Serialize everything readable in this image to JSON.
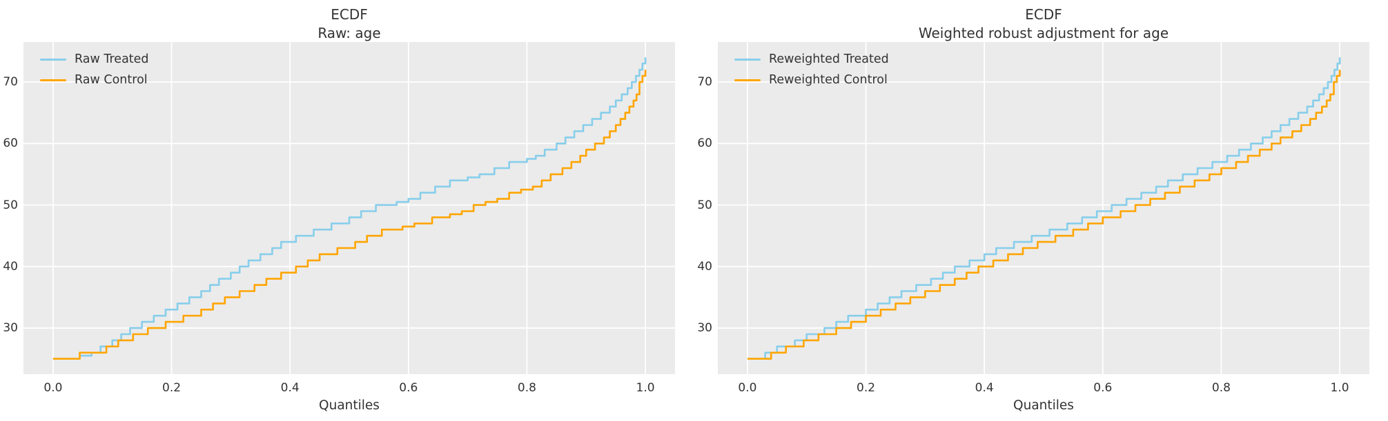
{
  "style": {
    "figure_bg": "#ffffff",
    "axes_bg": "#ebebeb",
    "grid_color": "#ffffff",
    "text_color": "#333333",
    "treated_color": "#87CEEB",
    "control_color": "#FFA500",
    "line_width": 2.6,
    "grid_width": 1.8
  },
  "chart_data": [
    {
      "type": "line",
      "title": "ECDF",
      "subtitle": "Raw: age",
      "xlabel": "Quantiles",
      "ylabel": "",
      "xlim": [
        -0.05,
        1.05
      ],
      "ylim": [
        22.5,
        76.5
      ],
      "xticks": [
        0.0,
        0.2,
        0.4,
        0.6,
        0.8,
        1.0
      ],
      "xtick_labels": [
        "0.0",
        "0.2",
        "0.4",
        "0.6",
        "0.8",
        "1.0"
      ],
      "yticks": [
        30,
        40,
        50,
        60,
        70
      ],
      "ytick_labels": [
        "30",
        "40",
        "50",
        "60",
        "70"
      ],
      "grid": true,
      "legend_position": "upper left",
      "step_mode": "post",
      "series": [
        {
          "name": "Raw Treated",
          "color": "#87CEEB",
          "points": [
            [
              0,
              25
            ],
            [
              0.045,
              25.5
            ],
            [
              0.065,
              26
            ],
            [
              0.08,
              27
            ],
            [
              0.1,
              28
            ],
            [
              0.115,
              29
            ],
            [
              0.13,
              30
            ],
            [
              0.15,
              31
            ],
            [
              0.17,
              32
            ],
            [
              0.19,
              33
            ],
            [
              0.21,
              34
            ],
            [
              0.23,
              35
            ],
            [
              0.25,
              36
            ],
            [
              0.265,
              37
            ],
            [
              0.28,
              38
            ],
            [
              0.3,
              39
            ],
            [
              0.315,
              40
            ],
            [
              0.33,
              41
            ],
            [
              0.35,
              42
            ],
            [
              0.37,
              43
            ],
            [
              0.385,
              44
            ],
            [
              0.41,
              45
            ],
            [
              0.44,
              46
            ],
            [
              0.47,
              47
            ],
            [
              0.5,
              48
            ],
            [
              0.52,
              49
            ],
            [
              0.545,
              50
            ],
            [
              0.58,
              50.5
            ],
            [
              0.6,
              51
            ],
            [
              0.62,
              52
            ],
            [
              0.645,
              53
            ],
            [
              0.67,
              54
            ],
            [
              0.7,
              54.5
            ],
            [
              0.72,
              55
            ],
            [
              0.745,
              56
            ],
            [
              0.77,
              57
            ],
            [
              0.8,
              57.5
            ],
            [
              0.815,
              58
            ],
            [
              0.83,
              59
            ],
            [
              0.85,
              60
            ],
            [
              0.865,
              61
            ],
            [
              0.88,
              62
            ],
            [
              0.895,
              63
            ],
            [
              0.91,
              64
            ],
            [
              0.925,
              65
            ],
            [
              0.94,
              66
            ],
            [
              0.95,
              67
            ],
            [
              0.96,
              68
            ],
            [
              0.97,
              69
            ],
            [
              0.977,
              70
            ],
            [
              0.984,
              71
            ],
            [
              0.99,
              72
            ],
            [
              0.995,
              73
            ],
            [
              1,
              74
            ]
          ]
        },
        {
          "name": "Raw Control",
          "color": "#FFA500",
          "points": [
            [
              0,
              25
            ],
            [
              0.045,
              26
            ],
            [
              0.09,
              27
            ],
            [
              0.11,
              28
            ],
            [
              0.135,
              29
            ],
            [
              0.16,
              30
            ],
            [
              0.19,
              31
            ],
            [
              0.22,
              32
            ],
            [
              0.25,
              33
            ],
            [
              0.27,
              34
            ],
            [
              0.29,
              35
            ],
            [
              0.315,
              36
            ],
            [
              0.34,
              37
            ],
            [
              0.36,
              38
            ],
            [
              0.385,
              39
            ],
            [
              0.41,
              40
            ],
            [
              0.43,
              41
            ],
            [
              0.45,
              42
            ],
            [
              0.48,
              43
            ],
            [
              0.51,
              44
            ],
            [
              0.53,
              45
            ],
            [
              0.555,
              46
            ],
            [
              0.59,
              46.5
            ],
            [
              0.61,
              47
            ],
            [
              0.64,
              48
            ],
            [
              0.67,
              48.5
            ],
            [
              0.69,
              49
            ],
            [
              0.71,
              50
            ],
            [
              0.73,
              50.5
            ],
            [
              0.75,
              51
            ],
            [
              0.77,
              52
            ],
            [
              0.79,
              52.5
            ],
            [
              0.81,
              53
            ],
            [
              0.825,
              54
            ],
            [
              0.84,
              55
            ],
            [
              0.86,
              56
            ],
            [
              0.875,
              57
            ],
            [
              0.89,
              58
            ],
            [
              0.9,
              59
            ],
            [
              0.915,
              60
            ],
            [
              0.93,
              61
            ],
            [
              0.94,
              62
            ],
            [
              0.95,
              63
            ],
            [
              0.958,
              64
            ],
            [
              0.966,
              65
            ],
            [
              0.973,
              66
            ],
            [
              0.98,
              67
            ],
            [
              0.985,
              68
            ],
            [
              0.99,
              70
            ],
            [
              0.995,
              71
            ],
            [
              1,
              72
            ]
          ]
        }
      ]
    },
    {
      "type": "line",
      "title": "ECDF",
      "subtitle": "Weighted robust adjustment for age",
      "xlabel": "Quantiles",
      "ylabel": "",
      "xlim": [
        -0.05,
        1.05
      ],
      "ylim": [
        22.5,
        76.5
      ],
      "xticks": [
        0.0,
        0.2,
        0.4,
        0.6,
        0.8,
        1.0
      ],
      "xtick_labels": [
        "0.0",
        "0.2",
        "0.4",
        "0.6",
        "0.8",
        "1.0"
      ],
      "yticks": [
        30,
        40,
        50,
        60,
        70
      ],
      "ytick_labels": [
        "30",
        "40",
        "50",
        "60",
        "70"
      ],
      "grid": true,
      "legend_position": "upper left",
      "step_mode": "post",
      "series": [
        {
          "name": "Reweighted Treated",
          "color": "#87CEEB",
          "points": [
            [
              0,
              25
            ],
            [
              0.03,
              26
            ],
            [
              0.05,
              27
            ],
            [
              0.08,
              28
            ],
            [
              0.1,
              29
            ],
            [
              0.13,
              30
            ],
            [
              0.15,
              31
            ],
            [
              0.17,
              32
            ],
            [
              0.2,
              33
            ],
            [
              0.22,
              34
            ],
            [
              0.24,
              35
            ],
            [
              0.26,
              36
            ],
            [
              0.285,
              37
            ],
            [
              0.31,
              38
            ],
            [
              0.33,
              39
            ],
            [
              0.35,
              40
            ],
            [
              0.375,
              41
            ],
            [
              0.4,
              42
            ],
            [
              0.42,
              43
            ],
            [
              0.45,
              44
            ],
            [
              0.48,
              45
            ],
            [
              0.51,
              46
            ],
            [
              0.54,
              47
            ],
            [
              0.565,
              48
            ],
            [
              0.59,
              49
            ],
            [
              0.615,
              50
            ],
            [
              0.64,
              51
            ],
            [
              0.665,
              52
            ],
            [
              0.69,
              53
            ],
            [
              0.71,
              54
            ],
            [
              0.735,
              55
            ],
            [
              0.76,
              56
            ],
            [
              0.785,
              57
            ],
            [
              0.81,
              58
            ],
            [
              0.83,
              59
            ],
            [
              0.85,
              60
            ],
            [
              0.87,
              61
            ],
            [
              0.885,
              62
            ],
            [
              0.9,
              63
            ],
            [
              0.915,
              64
            ],
            [
              0.93,
              65
            ],
            [
              0.945,
              66
            ],
            [
              0.955,
              67
            ],
            [
              0.965,
              68
            ],
            [
              0.973,
              69
            ],
            [
              0.98,
              70
            ],
            [
              0.986,
              71
            ],
            [
              0.991,
              72
            ],
            [
              0.996,
              73
            ],
            [
              1,
              74
            ]
          ]
        },
        {
          "name": "Reweighted Control",
          "color": "#FFA500",
          "points": [
            [
              0,
              25
            ],
            [
              0.04,
              26
            ],
            [
              0.065,
              27
            ],
            [
              0.095,
              28
            ],
            [
              0.12,
              29
            ],
            [
              0.15,
              30
            ],
            [
              0.175,
              31
            ],
            [
              0.2,
              32
            ],
            [
              0.225,
              33
            ],
            [
              0.25,
              34
            ],
            [
              0.275,
              35
            ],
            [
              0.3,
              36
            ],
            [
              0.325,
              37
            ],
            [
              0.35,
              38
            ],
            [
              0.37,
              39
            ],
            [
              0.39,
              40
            ],
            [
              0.415,
              41
            ],
            [
              0.44,
              42
            ],
            [
              0.465,
              43
            ],
            [
              0.49,
              44
            ],
            [
              0.52,
              45
            ],
            [
              0.55,
              46
            ],
            [
              0.575,
              47
            ],
            [
              0.6,
              48
            ],
            [
              0.63,
              49
            ],
            [
              0.655,
              50
            ],
            [
              0.68,
              51
            ],
            [
              0.705,
              52
            ],
            [
              0.73,
              53
            ],
            [
              0.755,
              54
            ],
            [
              0.78,
              55
            ],
            [
              0.8,
              56
            ],
            [
              0.825,
              57
            ],
            [
              0.845,
              58
            ],
            [
              0.865,
              59
            ],
            [
              0.885,
              60
            ],
            [
              0.9,
              61
            ],
            [
              0.92,
              62
            ],
            [
              0.935,
              63
            ],
            [
              0.95,
              64
            ],
            [
              0.96,
              65
            ],
            [
              0.97,
              66
            ],
            [
              0.978,
              67
            ],
            [
              0.984,
              68
            ],
            [
              0.99,
              70
            ],
            [
              0.995,
              71
            ],
            [
              1,
              72
            ]
          ]
        }
      ]
    }
  ]
}
